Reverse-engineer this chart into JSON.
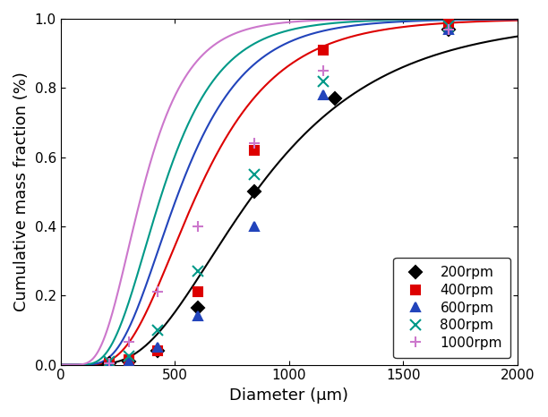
{
  "title": "",
  "xlabel": "Diameter (μm)",
  "ylabel": "Cumulative mass fraction (%)",
  "xlim": [
    0,
    2000
  ],
  "ylim": [
    0,
    1.0
  ],
  "xticks": [
    0,
    500,
    1000,
    1500,
    2000
  ],
  "yticks": [
    0.0,
    0.2,
    0.4,
    0.6,
    0.8,
    1.0
  ],
  "series": [
    {
      "label": "200rpm",
      "color": "#000000",
      "marker": "D",
      "marker_size": 7,
      "data_x": [
        106,
        212,
        300,
        425,
        600,
        850,
        1200,
        1700,
        2000
      ],
      "data_y": [
        0.0,
        0.005,
        0.01,
        0.04,
        0.165,
        0.5,
        0.77,
        0.97,
        1.0
      ],
      "log_mu": 6.75,
      "log_sigma": 0.52
    },
    {
      "label": "400rpm",
      "color": "#dd0000",
      "marker": "s",
      "marker_size": 7,
      "data_x": [
        106,
        212,
        300,
        425,
        600,
        850,
        1150,
        1700,
        2000
      ],
      "data_y": [
        0.0,
        0.005,
        0.015,
        0.04,
        0.21,
        0.62,
        0.91,
        0.99,
        1.0
      ],
      "log_mu": 6.4,
      "log_sigma": 0.46
    },
    {
      "label": "600rpm",
      "color": "#2244bb",
      "marker": "^",
      "marker_size": 7,
      "data_x": [
        106,
        212,
        300,
        425,
        600,
        850,
        1150,
        1700,
        2000
      ],
      "data_y": [
        0.0,
        0.005,
        0.01,
        0.05,
        0.14,
        0.4,
        0.78,
        0.97,
        1.0
      ],
      "log_mu": 6.25,
      "log_sigma": 0.44
    },
    {
      "label": "800rpm",
      "color": "#009988",
      "marker": "x",
      "marker_size": 8,
      "data_x": [
        106,
        212,
        300,
        425,
        600,
        850,
        1150,
        1700,
        2000
      ],
      "data_y": [
        0.0,
        0.01,
        0.025,
        0.1,
        0.27,
        0.55,
        0.82,
        0.98,
        1.0
      ],
      "log_mu": 6.1,
      "log_sigma": 0.44
    },
    {
      "label": "1000rpm",
      "color": "#cc77cc",
      "marker": "+",
      "marker_size": 9,
      "data_x": [
        106,
        212,
        300,
        425,
        600,
        850,
        1150,
        1700,
        2000
      ],
      "data_y": [
        0.0,
        0.005,
        0.065,
        0.21,
        0.4,
        0.64,
        0.85,
        0.97,
        1.0
      ],
      "log_mu": 5.88,
      "log_sigma": 0.44
    }
  ],
  "legend_loc": "lower right",
  "figsize": [
    6.12,
    4.66
  ],
  "dpi": 100
}
